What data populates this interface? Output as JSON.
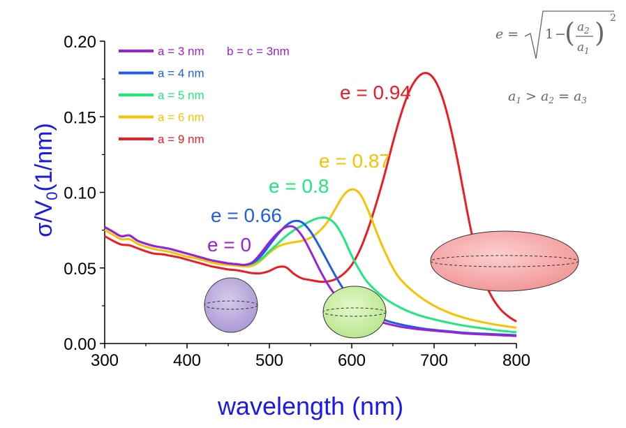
{
  "chart_data": {
    "type": "line",
    "xlabel": "wavelength (nm)",
    "ylabel": "σ/V0 (1/nm)",
    "ylabel_main": "σ/V",
    "ylabel_sub": "0",
    "ylabel_unit": "(1/nm)",
    "xlim": [
      300,
      800
    ],
    "ylim": [
      0,
      0.2
    ],
    "xticks": [
      300,
      400,
      500,
      600,
      700,
      800
    ],
    "xtick_labels": [
      "300",
      "400",
      "500",
      "600",
      "700",
      "800"
    ],
    "yticks": [
      0,
      0.05,
      0.1,
      0.15,
      0.2
    ],
    "ytick_labels": [
      "0.00",
      "0.05",
      "0.10",
      "0.15",
      "0.20"
    ],
    "legend_extra": "b = c = 3nm",
    "series": [
      {
        "name": "a = 3 nm",
        "color": "#9d1fd6",
        "annotation": "e = 0",
        "x": [
          300,
          310,
          320,
          330,
          340,
          350,
          360,
          370,
          380,
          390,
          400,
          410,
          420,
          430,
          440,
          450,
          460,
          470,
          480,
          490,
          500,
          510,
          520,
          530,
          540,
          550,
          560,
          570,
          580,
          590,
          600,
          620,
          640,
          660,
          680,
          700,
          720,
          740,
          760,
          780,
          800
        ],
        "y": [
          0.077,
          0.074,
          0.071,
          0.0715,
          0.068,
          0.066,
          0.0645,
          0.0635,
          0.0625,
          0.061,
          0.0595,
          0.058,
          0.0565,
          0.055,
          0.054,
          0.053,
          0.0525,
          0.052,
          0.054,
          0.06,
          0.067,
          0.073,
          0.077,
          0.077,
          0.071,
          0.061,
          0.05,
          0.04,
          0.032,
          0.026,
          0.022,
          0.017,
          0.0135,
          0.011,
          0.0095,
          0.0085,
          0.0075,
          0.0065,
          0.006,
          0.0055,
          0.005
        ]
      },
      {
        "name": "a = 4 nm",
        "color": "#1f5de8",
        "annotation": "e = 0.66",
        "x": [
          300,
          310,
          320,
          330,
          340,
          350,
          360,
          370,
          380,
          390,
          400,
          410,
          420,
          430,
          440,
          450,
          460,
          470,
          480,
          490,
          500,
          510,
          520,
          530,
          540,
          550,
          560,
          570,
          580,
          590,
          600,
          620,
          640,
          660,
          680,
          700,
          720,
          740,
          760,
          780,
          800
        ],
        "y": [
          0.077,
          0.074,
          0.071,
          0.0715,
          0.068,
          0.066,
          0.0645,
          0.0635,
          0.0625,
          0.061,
          0.0595,
          0.058,
          0.0565,
          0.055,
          0.054,
          0.053,
          0.0525,
          0.052,
          0.0535,
          0.058,
          0.065,
          0.072,
          0.078,
          0.081,
          0.08,
          0.074,
          0.065,
          0.055,
          0.045,
          0.036,
          0.029,
          0.0205,
          0.0155,
          0.0125,
          0.0105,
          0.009,
          0.008,
          0.007,
          0.0065,
          0.006,
          0.0055
        ]
      },
      {
        "name": "a = 5 nm",
        "color": "#1ee87e",
        "annotation": "e = 0.8",
        "x": [
          300,
          310,
          320,
          330,
          340,
          350,
          360,
          370,
          380,
          390,
          400,
          410,
          420,
          430,
          440,
          450,
          460,
          470,
          480,
          490,
          500,
          510,
          520,
          530,
          540,
          550,
          560,
          570,
          580,
          590,
          600,
          610,
          620,
          640,
          660,
          680,
          700,
          720,
          740,
          760,
          780,
          800
        ],
        "y": [
          0.077,
          0.074,
          0.071,
          0.0715,
          0.068,
          0.066,
          0.0645,
          0.0635,
          0.0625,
          0.061,
          0.0595,
          0.058,
          0.0565,
          0.055,
          0.054,
          0.053,
          0.0525,
          0.052,
          0.053,
          0.056,
          0.061,
          0.066,
          0.071,
          0.075,
          0.078,
          0.081,
          0.083,
          0.083,
          0.079,
          0.07,
          0.058,
          0.048,
          0.04,
          0.03,
          0.0235,
          0.019,
          0.016,
          0.0135,
          0.0115,
          0.01,
          0.0085,
          0.0075
        ]
      },
      {
        "name": "a = 6 nm",
        "color": "#f7c200",
        "annotation": "e = 0.87",
        "x": [
          300,
          310,
          320,
          330,
          340,
          350,
          360,
          370,
          380,
          390,
          400,
          410,
          420,
          430,
          440,
          450,
          460,
          470,
          480,
          490,
          500,
          510,
          520,
          530,
          540,
          550,
          560,
          570,
          580,
          590,
          600,
          610,
          620,
          630,
          640,
          650,
          660,
          680,
          700,
          720,
          740,
          760,
          780,
          800
        ],
        "y": [
          0.075,
          0.072,
          0.069,
          0.069,
          0.066,
          0.064,
          0.0625,
          0.0615,
          0.0605,
          0.059,
          0.0575,
          0.0565,
          0.055,
          0.0535,
          0.0525,
          0.052,
          0.0515,
          0.051,
          0.0515,
          0.055,
          0.06,
          0.064,
          0.066,
          0.067,
          0.068,
          0.07,
          0.074,
          0.08,
          0.089,
          0.098,
          0.102,
          0.099,
          0.088,
          0.074,
          0.061,
          0.05,
          0.042,
          0.032,
          0.025,
          0.02,
          0.0165,
          0.014,
          0.012,
          0.0105
        ]
      },
      {
        "name": "a = 9 nm",
        "color": "#eb1c24",
        "annotation": "e = 0.94",
        "x": [
          300,
          310,
          320,
          330,
          340,
          350,
          360,
          370,
          380,
          390,
          400,
          410,
          420,
          430,
          440,
          450,
          460,
          470,
          480,
          490,
          500,
          510,
          520,
          530,
          540,
          550,
          560,
          570,
          580,
          590,
          600,
          610,
          620,
          630,
          640,
          650,
          660,
          670,
          680,
          690,
          700,
          710,
          720,
          730,
          740,
          750,
          760,
          770,
          780,
          790,
          800
        ],
        "y": [
          0.071,
          0.068,
          0.0655,
          0.065,
          0.063,
          0.061,
          0.0595,
          0.059,
          0.058,
          0.057,
          0.0555,
          0.054,
          0.0525,
          0.051,
          0.05,
          0.049,
          0.0485,
          0.0475,
          0.0465,
          0.0465,
          0.048,
          0.0505,
          0.0505,
          0.046,
          0.043,
          0.042,
          0.041,
          0.041,
          0.0425,
          0.046,
          0.052,
          0.062,
          0.076,
          0.093,
          0.112,
          0.133,
          0.152,
          0.167,
          0.176,
          0.179,
          0.175,
          0.163,
          0.143,
          0.117,
          0.088,
          0.062,
          0.043,
          0.031,
          0.023,
          0.018,
          0.0145
        ]
      }
    ],
    "equations": {
      "eccentricity": "e = √(1 − (a2/a1)²)",
      "lhs": "e =",
      "one": "1",
      "minus": "−",
      "num": "a",
      "num_sub": "2",
      "den": "a",
      "den_sub": "1",
      "exp": "2",
      "relation": "a1 > a2 = a3"
    },
    "shape_icons": [
      {
        "name": "sphere",
        "color": "#b8a6d9"
      },
      {
        "name": "slightly-prolate",
        "color": "#c8ef9e"
      },
      {
        "name": "prolate",
        "color": "#f7a8a8"
      }
    ]
  }
}
